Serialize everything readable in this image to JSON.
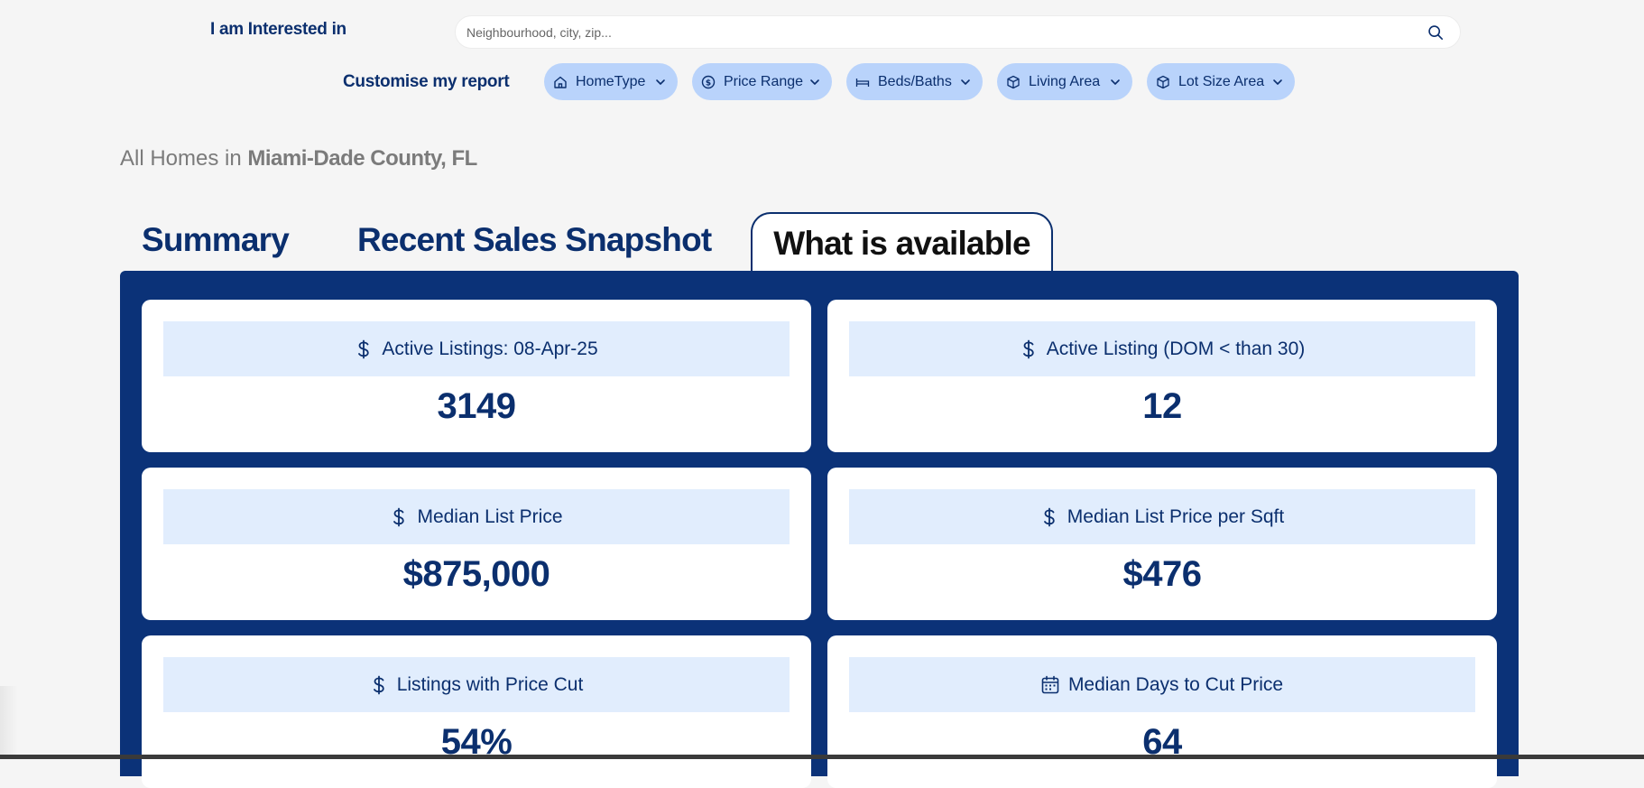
{
  "search": {
    "label": "I am Interested in",
    "placeholder": "Neighbourhood, city, zip..."
  },
  "filters": {
    "label": "Customise my report",
    "chips": [
      {
        "label": "HomeType",
        "icon": "home-icon"
      },
      {
        "label": "Price Range",
        "icon": "dollar-circle-icon"
      },
      {
        "label": "Beds/Baths",
        "icon": "bed-icon"
      },
      {
        "label": "Living Area",
        "icon": "cube-icon"
      },
      {
        "label": "Lot Size Area",
        "icon": "cube-icon"
      }
    ]
  },
  "headline": {
    "prefix": "All Homes in",
    "location": "Miami-Dade County, FL"
  },
  "tabs": [
    {
      "label": "Summary",
      "active": false
    },
    {
      "label": "Recent Sales Snapshot",
      "active": false
    },
    {
      "label": "What is available",
      "active": true
    }
  ],
  "cards": [
    {
      "title": "Active Listings: 08-Apr-25",
      "value": "3149",
      "icon": "dollar-icon"
    },
    {
      "title": "Active Listing (DOM < than 30)",
      "value": "12",
      "icon": "dollar-icon"
    },
    {
      "title": "Median List Price",
      "value": "$875,000",
      "icon": "dollar-icon"
    },
    {
      "title": "Median List Price per Sqft",
      "value": "$476",
      "icon": "dollar-icon"
    },
    {
      "title": "Listings with Price Cut",
      "value": "54%",
      "icon": "dollar-icon"
    },
    {
      "title": "Median Days to Cut Price",
      "value": "64",
      "icon": "calendar-icon"
    }
  ],
  "colors": {
    "brand": "#0b2f6e",
    "panel": "#0b3278",
    "chip": "#b9d3fb",
    "card_header": "#e1edfd",
    "background": "#f5f5f5"
  }
}
